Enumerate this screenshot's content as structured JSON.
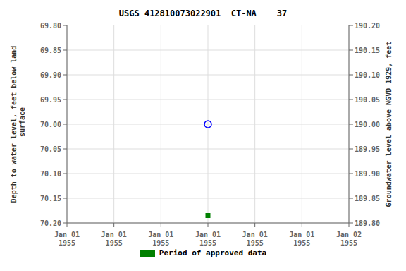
{
  "chart_data": {
    "type": "scatter",
    "title": "USGS 412810073022901  CT-NA    37",
    "y_label": "Depth to water level, feet below land\n surface",
    "y2_label": "Groundwater level above NGVD 1929, feet",
    "categories": [
      "Jan 01\n1955",
      "Jan 01\n1955",
      "Jan 01\n1955",
      "Jan 01\n1955",
      "Jan 01\n1955",
      "Jan 01\n1955",
      "Jan 02\n1955"
    ],
    "ylim": [
      70.2,
      69.8
    ],
    "yticks": [
      {
        "value": 69.8,
        "label": "69.80"
      },
      69.85,
      {
        "value": 69.9,
        "label": "69.90"
      },
      69.95,
      {
        "value": 70.0,
        "label": "70.00"
      },
      70.05,
      {
        "value": 70.1,
        "label": "70.10"
      },
      70.15,
      {
        "value": 70.2,
        "label": "70.20"
      }
    ],
    "y2lim": [
      189.8,
      190.2
    ],
    "y2ticks": [
      {
        "value": 189.8,
        "label": "189.80"
      },
      189.85,
      {
        "value": 189.9,
        "label": "189.90"
      },
      189.95,
      {
        "value": 190.0,
        "label": "190.00"
      },
      190.05,
      {
        "value": 190.1,
        "label": "190.10"
      },
      190.15,
      {
        "value": 190.2,
        "label": "190.20"
      }
    ],
    "grid": true,
    "legend": "bottom",
    "series": [
      {
        "color": "#0000ff",
        "marker": "open_circle",
        "values": [
          null,
          null,
          null,
          70.0,
          null,
          null,
          null
        ]
      },
      {
        "name": "Period of approved data",
        "color": "#008000",
        "marker": "square",
        "values": [
          null,
          null,
          null,
          70.185,
          null,
          null,
          null
        ]
      }
    ]
  }
}
